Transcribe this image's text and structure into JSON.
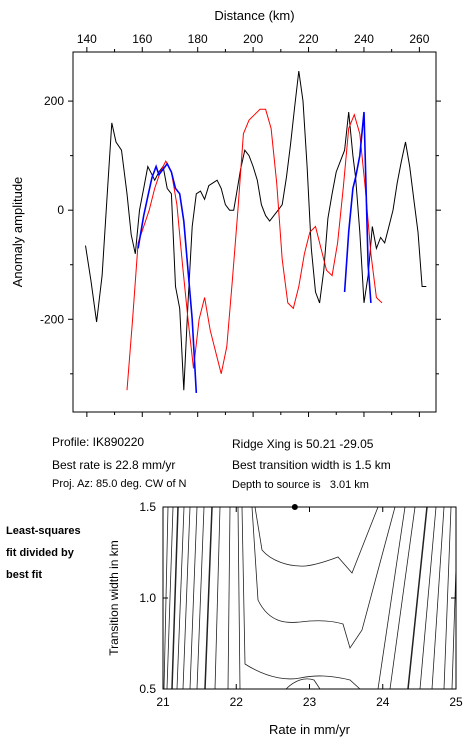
{
  "chart_data": [
    {
      "type": "line",
      "xlabel": "Distance (km)",
      "ylabel": "Anomaly amplitude",
      "xlim": [
        135,
        266
      ],
      "ylim": [
        -370,
        290
      ],
      "xticks": [
        "140",
        "160",
        "180",
        "200",
        "220",
        "240",
        "260"
      ],
      "yticks": [
        "200",
        "0",
        "-200"
      ],
      "series": [
        {
          "color": "#000000",
          "x": [
            139.5,
            141.5,
            143.5,
            145.5,
            147.5,
            149,
            150.5,
            152.5,
            154.5,
            156,
            157.5,
            159,
            160.5,
            162,
            163.5,
            164.5,
            166,
            167.5,
            169,
            170.5,
            172,
            173.5,
            175,
            176.5,
            178,
            179.5,
            181,
            182.5,
            184,
            185.5,
            187,
            188.5,
            190,
            191.5,
            193,
            194,
            195.5,
            197,
            198.5,
            200,
            201.5,
            203,
            204.5,
            206,
            207.5,
            209,
            210.5,
            212,
            213.5,
            215,
            216.5,
            218,
            219.5,
            221,
            222.5,
            224,
            225.5,
            227,
            228.5,
            230,
            231.5,
            233,
            234.5,
            236,
            237,
            238.5,
            240,
            241.5,
            243,
            244.5,
            246,
            247.5,
            249,
            250.5,
            252,
            253.5,
            255,
            256.5,
            258,
            259.5,
            261,
            262.5
          ],
          "y": [
            -65,
            -130,
            -205,
            -120,
            40,
            160,
            125,
            110,
            30,
            -45,
            -80,
            0,
            40,
            80,
            65,
            55,
            70,
            80,
            40,
            30,
            -140,
            -180,
            -330,
            -170,
            -30,
            30,
            35,
            20,
            45,
            50,
            55,
            40,
            10,
            0,
            0,
            30,
            75,
            110,
            100,
            80,
            55,
            10,
            -10,
            -20,
            -10,
            0,
            10,
            60,
            120,
            190,
            255,
            200,
            80,
            -70,
            -150,
            -170,
            -110,
            -15,
            30,
            70,
            90,
            110,
            180,
            100,
            60,
            -40,
            -170,
            -120,
            -30,
            -70,
            -50,
            -60,
            -30,
            0,
            50,
            90,
            125,
            80,
            20,
            -40,
            -140,
            -140
          ]
        },
        {
          "color": "#0000ff",
          "x": [
            158.5,
            160.5,
            162,
            163.5,
            165,
            166,
            167.5,
            169,
            170.5,
            172,
            173.5,
            175,
            176.5,
            178,
            179.5
          ],
          "y": [
            -70,
            -10,
            25,
            60,
            80,
            65,
            75,
            85,
            70,
            40,
            30,
            -20,
            -110,
            -200,
            -335
          ],
          "x2": [
            233,
            234.5,
            236,
            237,
            238.5,
            240,
            241.5,
            242.5
          ],
          "y2": [
            -150,
            -40,
            40,
            60,
            100,
            180,
            -100,
            -170
          ]
        },
        {
          "color": "#ff0000",
          "x": [
            154.5,
            156.5,
            158.5,
            160.5,
            162.5,
            164.5,
            166.5,
            168.5,
            170.5,
            172.5,
            174.5,
            176.5,
            178.5,
            180.5,
            182.5,
            184.5,
            186.5,
            188.5,
            190.5,
            192.5,
            194.5,
            196.5,
            198.5,
            200.5,
            202.5,
            204.5,
            206.5,
            208.5,
            210.5,
            212.5,
            214.5,
            216.5,
            218.5,
            220.5,
            222.5,
            224.5,
            226.5,
            228.5,
            230.5,
            232.5,
            234.5,
            236.5,
            238.5,
            240.5,
            242.5,
            244.5,
            246.5
          ],
          "y": [
            -330,
            -200,
            -60,
            -30,
            0,
            40,
            70,
            90,
            70,
            10,
            -100,
            -200,
            -290,
            -200,
            -160,
            -220,
            -260,
            -300,
            -250,
            -130,
            0,
            140,
            165,
            175,
            185,
            185,
            150,
            50,
            -90,
            -170,
            -180,
            -140,
            -80,
            -40,
            -30,
            -70,
            -110,
            -120,
            -60,
            40,
            150,
            175,
            140,
            40,
            -80,
            -160,
            -170
          ]
        }
      ]
    },
    {
      "type": "contour",
      "xlabel": "Rate in mm/yr",
      "ylabel": "Transition width in km",
      "xlim": [
        21,
        25
      ],
      "ylim": [
        0.5,
        1.5
      ],
      "xticks": [
        "21",
        "22",
        "23",
        "24",
        "25"
      ],
      "yticks": [
        "1.5",
        "1.0",
        "0.5"
      ],
      "best_fit_point": {
        "x": 22.8,
        "y": 1.5
      }
    }
  ],
  "info": {
    "profile": "Profile: IK890220",
    "best_rate": "Best rate is 22.8 mm/yr",
    "proj_az": "Proj. Az: 85.0 deg. CW of N",
    "ridge_xing": "Ridge Xing is 50.21 -29.05",
    "best_transition": "Best transition width is 1.5 km",
    "depth": "Depth to source is   3.01 km"
  },
  "side_label": [
    "Least-squares",
    "fit divided by",
    "best fit"
  ]
}
